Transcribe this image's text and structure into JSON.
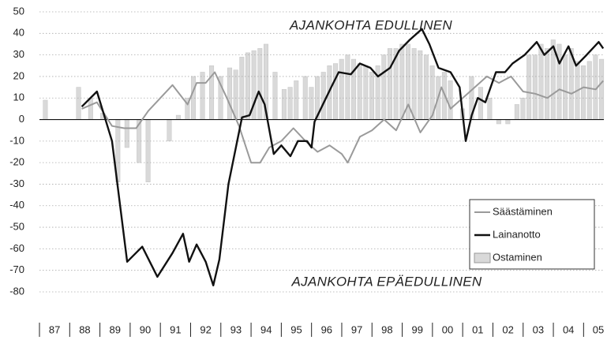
{
  "chart_data": {
    "type": "bar-line",
    "annotations": [
      "AJANKOHTA EDULLINEN",
      "AJANKOHTA EPÄEDULLINEN"
    ],
    "categories": [
      "87",
      "88",
      "89",
      "90",
      "91",
      "92",
      "93",
      "94",
      "95",
      "96",
      "97",
      "98",
      "99",
      "00",
      "01",
      "02",
      "03",
      "04",
      "05"
    ],
    "xlim": [
      1987,
      2005.67
    ],
    "ylim": [
      -80,
      50
    ],
    "yticks": [
      50,
      40,
      30,
      20,
      10,
      0,
      -10,
      -20,
      -30,
      -40,
      -50,
      -60,
      -70,
      -80
    ],
    "grid": true,
    "legend": "lower right",
    "series": [
      {
        "name": "Säästäminen",
        "type": "line",
        "color": "#9a9a9a",
        "x": [
          1988.4,
          1988.9,
          1989.4,
          1989.8,
          1990.2,
          1990.6,
          1991.0,
          1991.4,
          1991.9,
          1992.2,
          1992.5,
          1992.8,
          1993.2,
          1993.6,
          1994.0,
          1994.3,
          1994.6,
          1995.0,
          1995.4,
          1995.8,
          1996.2,
          1996.6,
          1997.0,
          1997.2,
          1997.6,
          1998.0,
          1998.4,
          1998.8,
          1999.2,
          1999.6,
          2000.0,
          2000.3,
          2000.6,
          2001.0,
          2001.4,
          2001.8,
          2002.2,
          2002.6,
          2003.0,
          2003.4,
          2003.8,
          2004.2,
          2004.6,
          2005.0,
          2005.4,
          2005.65
        ],
        "values": [
          5,
          8,
          -3,
          -4,
          -4,
          4,
          10,
          16,
          7,
          17,
          17,
          22,
          10,
          -3,
          -20,
          -20,
          -13,
          -10,
          -4,
          -10,
          -15,
          -12,
          -16,
          -20,
          -8,
          -5,
          0,
          -5,
          7,
          -6,
          2,
          15,
          5,
          10,
          15,
          20,
          17,
          20,
          13,
          12,
          10,
          14,
          12,
          15,
          14,
          18
        ]
      },
      {
        "name": "Lainanotto",
        "type": "line",
        "color": "#111111",
        "x": [
          1988.4,
          1988.9,
          1989.4,
          1989.9,
          1990.4,
          1990.9,
          1991.4,
          1991.75,
          1991.95,
          1992.2,
          1992.5,
          1992.75,
          1992.95,
          1993.25,
          1993.7,
          1993.95,
          1994.25,
          1994.45,
          1994.75,
          1995.0,
          1995.3,
          1995.55,
          1995.85,
          1996.0,
          1996.1,
          1996.65,
          1996.9,
          1997.3,
          1997.6,
          1997.95,
          1998.2,
          1998.6,
          1998.9,
          1999.25,
          1999.65,
          1999.9,
          2000.2,
          2000.6,
          2000.9,
          2001.1,
          2001.3,
          2001.5,
          2001.75,
          2002.1,
          2002.4,
          2002.65,
          2003.05,
          2003.45,
          2003.7,
          2004.0,
          2004.2,
          2004.5,
          2004.75,
          2005.1,
          2005.5,
          2005.65
        ],
        "values": [
          6,
          13,
          -10,
          -66,
          -59,
          -73,
          -62,
          -53,
          -66,
          -58,
          -66,
          -77,
          -65,
          -30,
          1,
          2,
          13,
          7,
          -16,
          -12,
          -17,
          -10,
          -10,
          -13,
          -1,
          15,
          22,
          21,
          26,
          24,
          20,
          24,
          32,
          37,
          42,
          35,
          24,
          22,
          15,
          -10,
          2,
          10,
          8,
          22,
          22,
          26,
          30,
          36,
          30,
          34,
          26,
          34,
          25,
          30,
          36,
          33
        ]
      },
      {
        "name": "Ostaminen",
        "type": "bar",
        "color": "#d9d9d9",
        "x": [
          1987.2,
          1988.3,
          1988.7,
          1989.1,
          1989.6,
          1989.9,
          1990.3,
          1990.6,
          1991.3,
          1991.6,
          1991.9,
          1992.1,
          1992.4,
          1992.7,
          1993.0,
          1993.3,
          1993.5,
          1993.7,
          1993.9,
          1994.1,
          1994.3,
          1994.5,
          1994.8,
          1995.1,
          1995.3,
          1995.5,
          1995.8,
          1996.0,
          1996.2,
          1996.4,
          1996.6,
          1996.8,
          1997.0,
          1997.2,
          1997.4,
          1997.6,
          1997.8,
          1998.0,
          1998.2,
          1998.4,
          1998.6,
          1998.8,
          1999.0,
          1999.2,
          1999.4,
          1999.6,
          1999.8,
          2000.0,
          2000.2,
          2000.4,
          2000.6,
          2001.0,
          2001.3,
          2001.6,
          2001.9,
          2002.2,
          2002.5,
          2002.8,
          2003.0,
          2003.2,
          2003.4,
          2003.6,
          2003.8,
          2004.0,
          2004.2,
          2004.4,
          2004.6,
          2004.8,
          2005.0,
          2005.2,
          2005.4,
          2005.6
        ],
        "values": [
          9,
          15,
          10,
          3,
          -29,
          -13,
          -20,
          -29,
          -10,
          2,
          10,
          20,
          22,
          25,
          20,
          24,
          23,
          29,
          31,
          32,
          33,
          35,
          22,
          14,
          15,
          18,
          20,
          15,
          20,
          22,
          25,
          26,
          28,
          30,
          28,
          26,
          25,
          22,
          25,
          30,
          33,
          33,
          35,
          35,
          33,
          32,
          30,
          25,
          20,
          22,
          18,
          5,
          20,
          15,
          10,
          -2,
          -2,
          7,
          10,
          30,
          30,
          35,
          33,
          37,
          35,
          30,
          33,
          27,
          25,
          27,
          30,
          28
        ]
      }
    ]
  }
}
